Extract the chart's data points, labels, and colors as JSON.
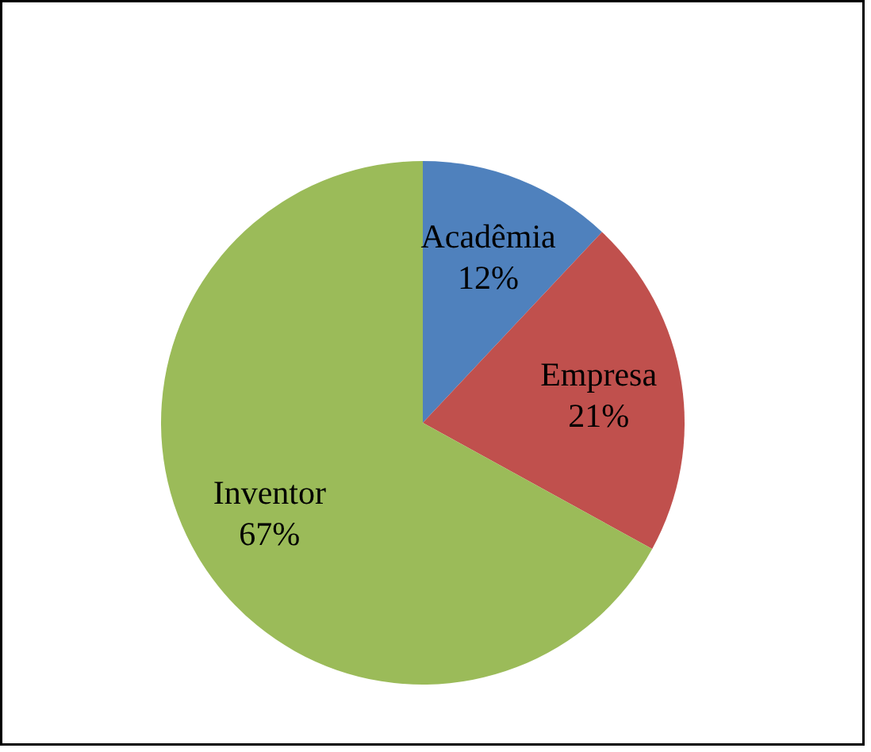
{
  "chart_data": {
    "type": "pie",
    "categories": [
      "Acadêmia",
      "Empresa",
      "Inventor"
    ],
    "values": [
      12,
      21,
      67
    ],
    "value_labels": [
      "12%",
      "21%",
      "67%"
    ],
    "colors": [
      "#4f81bd",
      "#c0504d",
      "#9bbb59"
    ]
  }
}
